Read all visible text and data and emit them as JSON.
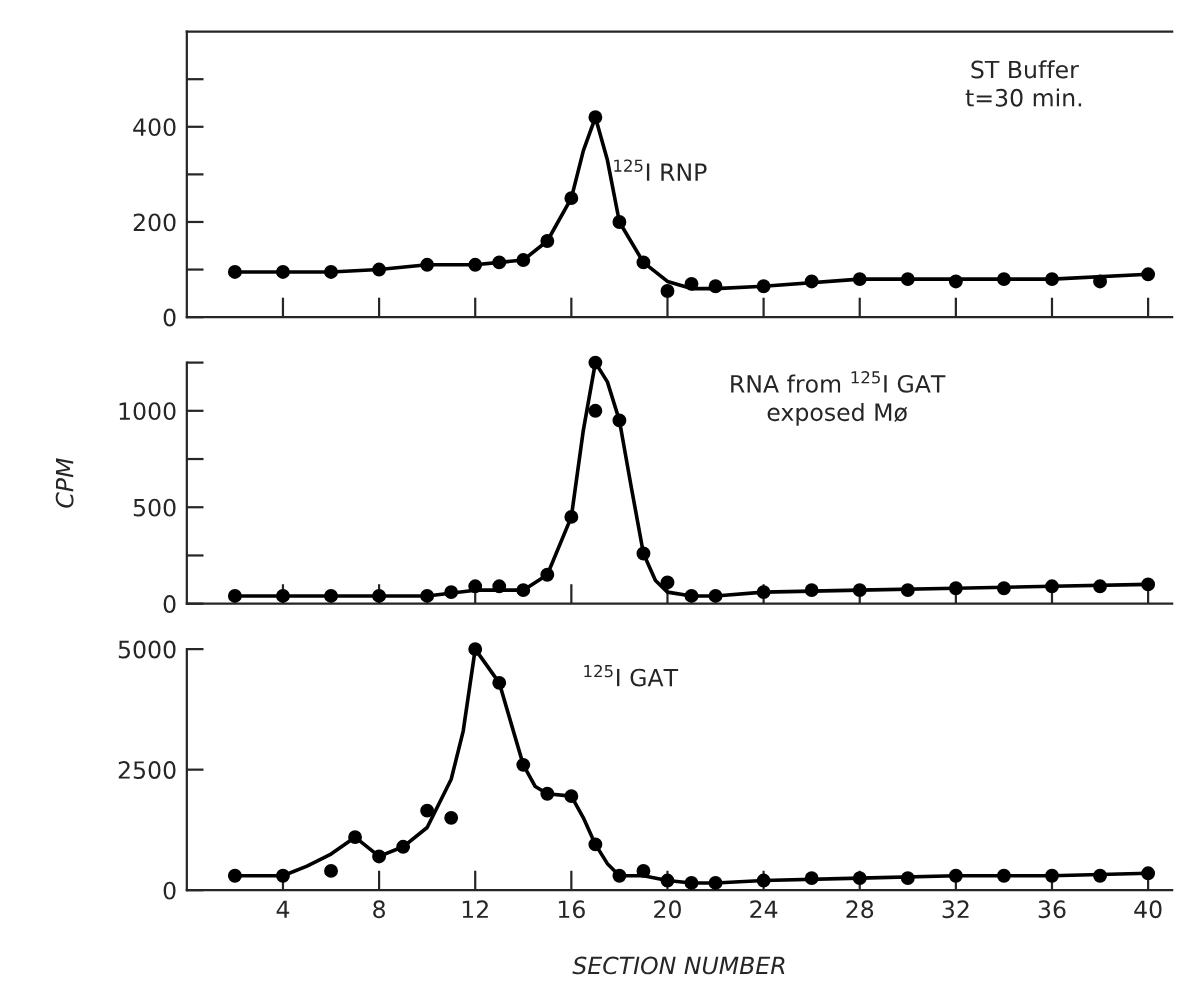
{
  "chart_data": [
    {
      "type": "line",
      "xlim": [
        0,
        41
      ],
      "xticks": [
        {
          "value": 4,
          "label": null
        },
        {
          "value": 8,
          "label": null
        },
        {
          "value": 12,
          "label": null
        },
        {
          "value": 16,
          "label": null
        },
        {
          "value": 20,
          "label": null
        },
        {
          "value": 24,
          "label": null
        },
        {
          "value": 28,
          "label": null
        },
        {
          "value": 32,
          "label": null
        },
        {
          "value": 36,
          "label": null
        },
        {
          "value": 40,
          "label": null
        }
      ],
      "ylim": [
        0,
        600
      ],
      "yticks": [
        0,
        {
          "value": 100,
          "label": null
        },
        200,
        {
          "value": 300,
          "label": null
        },
        400,
        {
          "value": 500,
          "label": null
        }
      ],
      "tick_labels": "y",
      "grid": false,
      "annotations": [
        "ST Buffer\nt=30 min.",
        {
          "text": "$^{125}$I RNP",
          "x": 17.7,
          "y": 300
        }
      ],
      "series": [
        {
          "marker": "none",
          "color": "#000000",
          "x": [
            2,
            4,
            6,
            8,
            10,
            12,
            13,
            14,
            15,
            16,
            16.5,
            17,
            17.5,
            18,
            19,
            20,
            21,
            22,
            24,
            28,
            32,
            36,
            40
          ],
          "values": [
            95,
            95,
            95,
            100,
            110,
            110,
            115,
            120,
            160,
            250,
            350,
            420,
            330,
            200,
            115,
            75,
            60,
            60,
            65,
            80,
            80,
            80,
            90
          ]
        },
        {
          "type": "scatter",
          "marker": "circle",
          "color": "#000000",
          "x": [
            2,
            4,
            6,
            8,
            10,
            12,
            13,
            14,
            15,
            16,
            17,
            18,
            19,
            20,
            21,
            22,
            24,
            26,
            28,
            30,
            32,
            34,
            36,
            38,
            40
          ],
          "values": [
            95,
            95,
            95,
            100,
            110,
            110,
            115,
            120,
            160,
            250,
            420,
            200,
            115,
            55,
            70,
            65,
            65,
            75,
            80,
            80,
            75,
            80,
            80,
            75,
            90
          ]
        }
      ]
    },
    {
      "type": "line",
      "xlim": [
        0,
        41
      ],
      "xticks": [
        {
          "value": 4,
          "label": null
        },
        {
          "value": 8,
          "label": null
        },
        {
          "value": 12,
          "label": null
        },
        {
          "value": 16,
          "label": null
        },
        {
          "value": 20,
          "label": null
        },
        {
          "value": 24,
          "label": null
        },
        {
          "value": 28,
          "label": null
        },
        {
          "value": 32,
          "label": null
        },
        {
          "value": 36,
          "label": null
        },
        {
          "value": 40,
          "label": null
        }
      ],
      "ylim": [
        0,
        1250
      ],
      "yticks": [
        0,
        {
          "value": 250,
          "label": null
        },
        500,
        {
          "value": 750,
          "label": null
        },
        1000,
        {
          "value": 1250,
          "label": null
        }
      ],
      "tick_labels": "y",
      "grid": false,
      "ylabel": "CPM",
      "annotations": [
        "RNA from $^{125}$I GAT\nexposed Mø"
      ],
      "series": [
        {
          "marker": "none",
          "color": "#000000",
          "x": [
            2,
            10,
            12,
            14,
            15,
            16,
            16.5,
            17,
            17.5,
            18,
            18.5,
            19,
            19.5,
            20,
            21,
            22,
            24,
            28,
            32,
            36,
            40
          ],
          "values": [
            40,
            40,
            70,
            70,
            150,
            450,
            900,
            1250,
            1150,
            950,
            600,
            260,
            120,
            60,
            40,
            40,
            60,
            70,
            80,
            90,
            100
          ]
        },
        {
          "type": "scatter",
          "marker": "circle",
          "color": "#000000",
          "x": [
            2,
            4,
            6,
            8,
            10,
            11,
            12,
            13,
            14,
            15,
            16,
            17,
            17,
            18,
            19,
            20,
            21,
            22,
            24,
            26,
            28,
            30,
            32,
            34,
            36,
            38,
            40
          ],
          "values": [
            40,
            40,
            40,
            40,
            40,
            60,
            90,
            90,
            70,
            150,
            450,
            1250,
            1000,
            950,
            260,
            110,
            40,
            40,
            60,
            70,
            70,
            70,
            80,
            80,
            90,
            90,
            100
          ]
        }
      ]
    },
    {
      "type": "line",
      "xlim": [
        0,
        41
      ],
      "xticks": [
        4,
        8,
        12,
        16,
        20,
        24,
        28,
        32,
        36,
        40
      ],
      "ylim": [
        0,
        5000
      ],
      "yticks": [
        0,
        2500,
        5000
      ],
      "xlabel": "SECTION NUMBER",
      "grid": false,
      "annotations": [
        "$^{125}$I GAT"
      ],
      "series": [
        {
          "marker": "none",
          "color": "#000000",
          "x": [
            2,
            4,
            5,
            6,
            7,
            8,
            9,
            10,
            11,
            11.5,
            12,
            13,
            14,
            14.5,
            15,
            16,
            16.5,
            17,
            17.5,
            18,
            19,
            20,
            21,
            22,
            24,
            28,
            32,
            36,
            40
          ],
          "values": [
            300,
            300,
            500,
            750,
            1100,
            700,
            900,
            1300,
            2300,
            3300,
            5000,
            4300,
            2600,
            2150,
            2000,
            1950,
            1500,
            950,
            550,
            300,
            300,
            200,
            150,
            150,
            200,
            250,
            300,
            300,
            350
          ]
        },
        {
          "type": "scatter",
          "marker": "circle",
          "color": "#000000",
          "x": [
            2,
            4,
            6,
            7,
            8,
            9,
            10,
            11,
            12,
            13,
            14,
            15,
            16,
            17,
            18,
            19,
            20,
            21,
            22,
            24,
            26,
            28,
            30,
            32,
            34,
            36,
            38,
            40
          ],
          "values": [
            300,
            300,
            400,
            1100,
            700,
            900,
            1650,
            1500,
            5000,
            4300,
            2600,
            2000,
            1950,
            950,
            300,
            400,
            200,
            150,
            150,
            200,
            250,
            250,
            250,
            300,
            300,
            300,
            300,
            350
          ]
        }
      ]
    }
  ]
}
